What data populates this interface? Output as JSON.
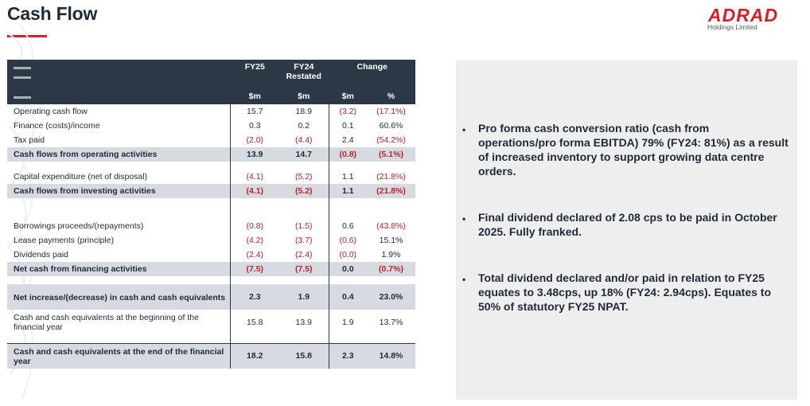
{
  "header": {
    "title": "Cash Flow"
  },
  "logo": {
    "word": "ADRAD",
    "subtitle": "Holdings Limited"
  },
  "table": {
    "columns": {
      "fy25": "FY25",
      "fy24_line1": "FY24",
      "fy24_line2": "Restated",
      "change": "Change"
    },
    "units": {
      "fy25": "$m",
      "fy24": "$m",
      "chg_abs": "$m",
      "chg_pct": "%"
    },
    "rows": [
      {
        "label": "Operating cash flow",
        "fy25": "15.7",
        "fy24": "18.9",
        "chg_abs": "(3.2)",
        "chg_pct": "(17.1%)"
      },
      {
        "label": "Finance (costs)/income",
        "fy25": "0.3",
        "fy24": "0.2",
        "chg_abs": "0.1",
        "chg_pct": "60.6%"
      },
      {
        "label": "Tax paid",
        "fy25": "(2.0)",
        "fy24": "(4.4)",
        "chg_abs": "2.4",
        "chg_pct": "(54.2%)"
      },
      {
        "label": "Cash flows from operating activities",
        "fy25": "13.9",
        "fy24": "14.7",
        "chg_abs": "(0.8)",
        "chg_pct": "(5.1%)"
      },
      {
        "label": "Capital expenditure (net of disposal)",
        "fy25": "(4.1)",
        "fy24": "(5.2)",
        "chg_abs": "1.1",
        "chg_pct": "(21.8%)"
      },
      {
        "label": "Cash flows from investing activities",
        "fy25": "(4.1)",
        "fy24": "(5.2)",
        "chg_abs": "1.1",
        "chg_pct": "(21.8%)"
      },
      {
        "label": "Borrowings proceeds/(repayments)",
        "fy25": "(0.8)",
        "fy24": "(1.5)",
        "chg_abs": "0.6",
        "chg_pct": "(43.8%)"
      },
      {
        "label": "Lease payments (principle)",
        "fy25": "(4.2)",
        "fy24": "(3.7)",
        "chg_abs": "(0.6)",
        "chg_pct": "15.1%"
      },
      {
        "label": "Dividends paid",
        "fy25": "(2.4)",
        "fy24": "(2.4)",
        "chg_abs": "(0.0)",
        "chg_pct": "1.9%"
      },
      {
        "label": "Net cash from financing activities",
        "fy25": "(7.5)",
        "fy24": "(7.5)",
        "chg_abs": "0.0",
        "chg_pct": "(0.7%)"
      },
      {
        "label": "Net increase/(decrease) in cash and cash equivalents",
        "fy25": "2.3",
        "fy24": "1.9",
        "chg_abs": "0.4",
        "chg_pct": "23.0%"
      },
      {
        "label": "Cash and cash equivalents at the beginning of the financial year",
        "fy25": "15.8",
        "fy24": "13.9",
        "chg_abs": "1.9",
        "chg_pct": "13.7%"
      },
      {
        "label": "Cash and cash equivalents at the end of the financial year",
        "fy25": "18.2",
        "fy24": "15.8",
        "chg_abs": "2.3",
        "chg_pct": "14.8%"
      }
    ]
  },
  "commentary": {
    "bullets": [
      "Pro forma cash conversion ratio (cash from operations/pro forma EBITDA) 79% (FY24: 81%) as a result of increased inventory to support growing data centre orders.",
      "Final dividend declared of 2.08 cps to be paid in October 2025. Fully franked.",
      "Total dividend declared and/or paid in relation to FY25 equates to 3.48cps, up 18% (FY24: 2.94cps). Equates to 50% of statutory FY25 NPAT."
    ]
  },
  "colors": {
    "accent": "#d71f26",
    "table_header": "#2d3846",
    "highlight_row": "#d7dbe1",
    "panel": "#eeeeee",
    "negative": "#b8232a"
  }
}
